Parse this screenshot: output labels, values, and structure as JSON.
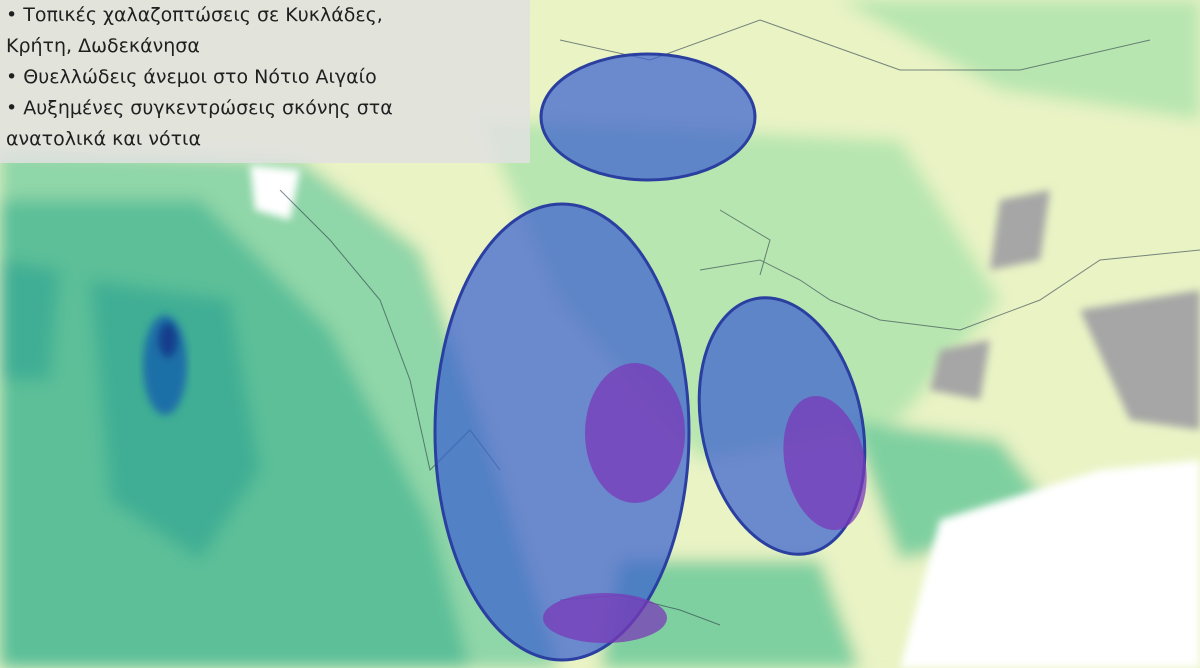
{
  "bulletin": {
    "lines": [
      "• Τοπικές χαλαζοπτώσεις σε Κυκλάδες,",
      "Κρήτη, Δωδεκάνησα",
      "• Θυελλώδεις άνεμοι στο Νότιο Αιγαίο",
      "• Αυξημένες συγκεντρώσεις σκόνης στα",
      "ανατολικά  και νότια"
    ]
  },
  "colors": {
    "land_light": "#e9f3c4",
    "precip_light": "#b8e6b0",
    "precip_mid": "#7fd0a0",
    "precip_teal": "#3fae94",
    "precip_dark": "#1f6fa8",
    "highlight_blue": "#3a5fd0",
    "highlight_purple": "#7a3ab8",
    "terrain_gray": "#a6a6a6",
    "sea_white": "#ffffff"
  }
}
